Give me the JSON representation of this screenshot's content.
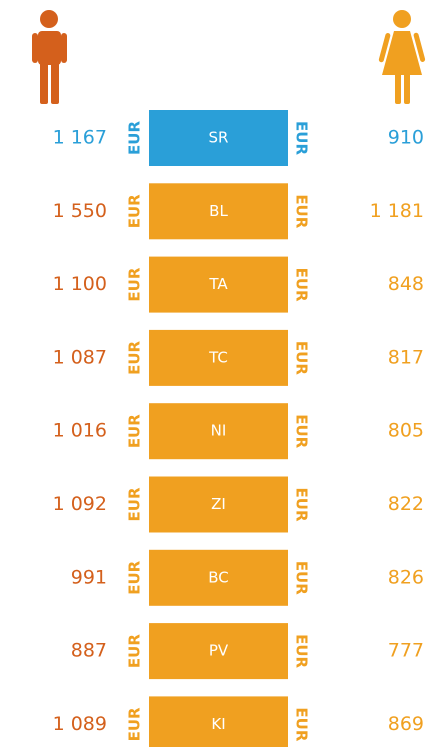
{
  "unit": "EUR",
  "rows": [
    {
      "region": "SR",
      "male": "1 167",
      "female": "910"
    },
    {
      "region": "BL",
      "male": "1 550",
      "female": "1 181"
    },
    {
      "region": "TA",
      "male": "1 100",
      "female": "848"
    },
    {
      "region": "TC",
      "male": "1 087",
      "female": "817"
    },
    {
      "region": "NI",
      "male": "1 016",
      "female": "805"
    },
    {
      "region": "ZI",
      "male": "1 092",
      "female": "822"
    },
    {
      "region": "BC",
      "male": "991",
      "female": "826"
    },
    {
      "region": "PV",
      "male": "887",
      "female": "777"
    },
    {
      "region": "KI",
      "male": "1 089",
      "female": "869"
    }
  ]
}
